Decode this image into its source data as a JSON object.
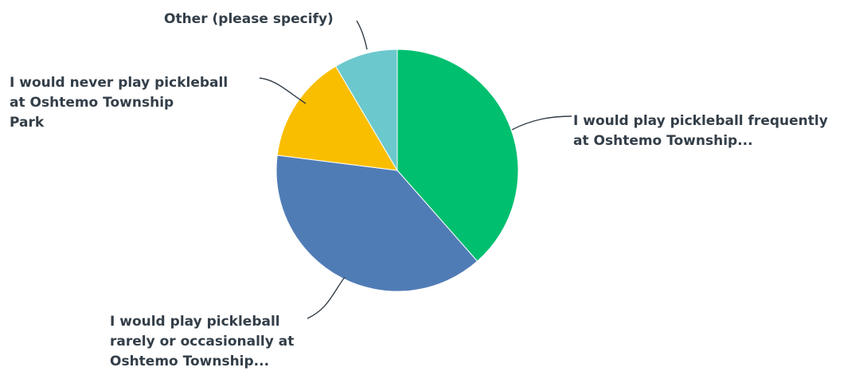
{
  "chart_data": {
    "type": "pie",
    "title": "",
    "start_angle_deg": 0,
    "direction": "clockwise",
    "slices": [
      {
        "label": "I would play pickleball frequently at Oshtemo Township...",
        "label_lines": [
          "I would play pickleball frequently",
          "at Oshtemo Township..."
        ],
        "value": 38.5,
        "color": "#00bf6f"
      },
      {
        "label": "I would play pickleball rarely or occasionally at Oshtemo Township...",
        "label_lines": [
          "I would play pickleball",
          "rarely or occasionally at",
          "Oshtemo Township..."
        ],
        "value": 38.5,
        "color": "#507cb6"
      },
      {
        "label": "I would never play pickleball at Oshtemo Township Park",
        "label_lines": [
          "I would never play pickleball",
          "at Oshtemo Township",
          "Park"
        ],
        "value": 14.5,
        "color": "#f9be00"
      },
      {
        "label": "Other (please specify)",
        "label_lines": [
          "Other (please specify)"
        ],
        "value": 8.5,
        "color": "#6bc8cd"
      }
    ]
  }
}
